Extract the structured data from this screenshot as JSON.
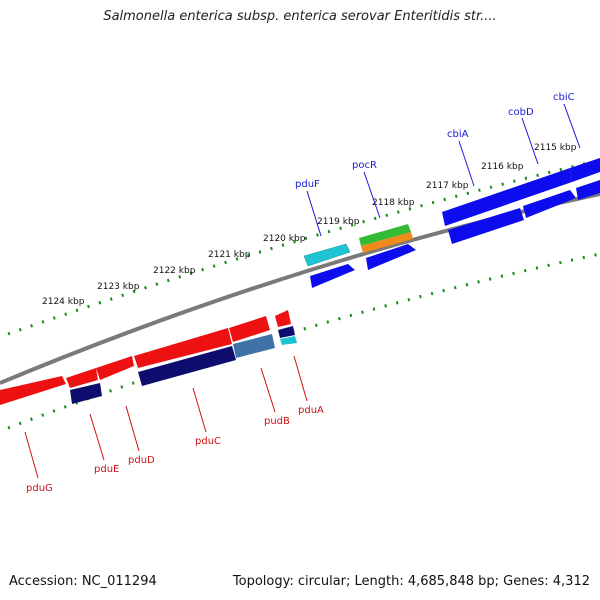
{
  "title": "Salmonella enterica subsp. enterica serovar Enteritidis str....",
  "accession": "Accession: NC_011294",
  "stats": "Topology: circular; Length: 4,685,848 bp; Genes: 4,312",
  "kbp_labels": [
    "2124 kbp",
    "2123 kbp",
    "2122 kbp",
    "2121 kbp",
    "2120 kbp",
    "2119 kbp",
    "2118 kbp",
    "2117 kbp",
    "2116 kbp",
    "2115 kbp"
  ],
  "genes_forward": [
    "pduF",
    "pocR",
    "cbiA",
    "cobD",
    "cbiC"
  ],
  "genes_reverse": [
    "pduG",
    "pduE",
    "pduD",
    "pduC",
    "pudB",
    "pduA"
  ],
  "colors": {
    "forward_strand": "#0c0cee",
    "reverse_strand": "#ee1111",
    "dark_feature": "#0d0d6e",
    "steel_feature": "#3f72a8",
    "cyan_feature": "#1ec4d2",
    "green_feature": "#33bb33",
    "orange_feature": "#f08a1a",
    "backbone": "#7a7a7a",
    "tick_marks": "#178a17"
  }
}
